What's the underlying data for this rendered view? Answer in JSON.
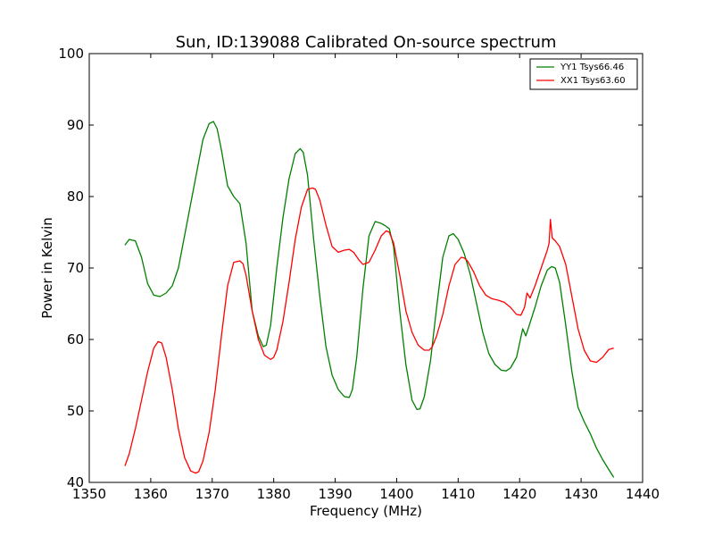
{
  "chart_data": {
    "type": "line",
    "title": "Sun, ID:139088 Calibrated On-source spectrum",
    "xlabel": "Frequency (MHz)",
    "ylabel": "Power in Kelvin",
    "xlim": [
      1350,
      1440
    ],
    "ylim": [
      40,
      100
    ],
    "xticks": [
      1350,
      1360,
      1370,
      1380,
      1390,
      1400,
      1410,
      1420,
      1430,
      1440
    ],
    "yticks": [
      40,
      50,
      60,
      70,
      80,
      90,
      100
    ],
    "grid": false,
    "legend_position": "top-right",
    "series": [
      {
        "name": "YY1 Tsys66.46",
        "color": "#008000",
        "x": [
          1355.8,
          1356.5,
          1357.5,
          1358.5,
          1359.5,
          1360.5,
          1361.5,
          1362.5,
          1363.5,
          1364.5,
          1365.5,
          1366.5,
          1367.5,
          1368.5,
          1369.5,
          1370.2,
          1370.8,
          1371.5,
          1372.5,
          1373.5,
          1374.5,
          1375.5,
          1376.5,
          1377.5,
          1378.3,
          1378.8,
          1379.5,
          1380.5,
          1381.5,
          1382.5,
          1383.5,
          1384.3,
          1384.8,
          1385.5,
          1386.5,
          1387.5,
          1388.5,
          1389.5,
          1390.5,
          1391.5,
          1392.3,
          1392.8,
          1393.5,
          1394.5,
          1395.5,
          1396.5,
          1397.3,
          1398.0,
          1398.8,
          1399.5,
          1400.5,
          1401.5,
          1402.5,
          1403.3,
          1403.8,
          1404.5,
          1405.5,
          1406.5,
          1407.5,
          1408.5,
          1409.2,
          1410.0,
          1411.0,
          1412.0,
          1413.0,
          1414.0,
          1415.0,
          1416.0,
          1417.0,
          1417.8,
          1418.5,
          1419.5,
          1420.5,
          1421.0,
          1421.5,
          1422.5,
          1423.5,
          1424.5,
          1425.2,
          1425.8,
          1426.5,
          1427.5,
          1428.5,
          1429.5,
          1430.5,
          1431.5,
          1432.5,
          1433.5,
          1434.5,
          1435.3
        ],
        "values": [
          73.2,
          74.0,
          73.8,
          71.5,
          67.8,
          66.2,
          66.0,
          66.5,
          67.5,
          70.0,
          74.5,
          79.0,
          83.5,
          88.0,
          90.2,
          90.5,
          89.5,
          86.5,
          81.5,
          80.0,
          79.0,
          73.5,
          64.0,
          60.5,
          59.0,
          59.2,
          62.0,
          70.0,
          77.0,
          82.5,
          86.0,
          86.7,
          86.2,
          83.0,
          74.0,
          66.0,
          59.0,
          55.0,
          53.0,
          52.0,
          51.9,
          53.0,
          57.5,
          67.0,
          74.5,
          76.5,
          76.3,
          76.0,
          75.5,
          73.0,
          64.0,
          56.5,
          51.5,
          50.2,
          50.3,
          52.0,
          57.0,
          64.5,
          71.5,
          74.5,
          74.8,
          74.0,
          72.0,
          69.0,
          65.0,
          61.0,
          58.0,
          56.5,
          55.7,
          55.6,
          56.0,
          57.5,
          61.5,
          60.5,
          61.8,
          64.5,
          67.5,
          69.7,
          70.2,
          70.0,
          68.0,
          62.0,
          55.5,
          50.5,
          48.5,
          46.8,
          44.8,
          43.2,
          41.8,
          40.7
        ]
      },
      {
        "name": "XX1 Tsys63.60",
        "color": "#ff0000",
        "x": [
          1355.8,
          1356.5,
          1357.5,
          1358.5,
          1359.5,
          1360.5,
          1361.2,
          1361.8,
          1362.5,
          1363.5,
          1364.5,
          1365.5,
          1366.5,
          1367.3,
          1367.8,
          1368.5,
          1369.5,
          1370.5,
          1371.5,
          1372.5,
          1373.5,
          1374.5,
          1375.0,
          1375.5,
          1376.5,
          1377.5,
          1378.5,
          1379.5,
          1380.0,
          1380.5,
          1381.5,
          1382.5,
          1383.5,
          1384.5,
          1385.5,
          1386.3,
          1386.8,
          1387.5,
          1388.5,
          1389.5,
          1390.5,
          1391.5,
          1392.3,
          1393.0,
          1393.8,
          1394.5,
          1395.5,
          1396.5,
          1397.5,
          1398.3,
          1398.8,
          1399.5,
          1400.5,
          1401.5,
          1402.5,
          1403.5,
          1404.5,
          1405.3,
          1405.8,
          1406.5,
          1407.5,
          1408.5,
          1409.5,
          1410.5,
          1411.0,
          1411.5,
          1412.5,
          1413.5,
          1414.5,
          1415.5,
          1416.5,
          1417.5,
          1418.5,
          1419.5,
          1420.2,
          1420.8,
          1421.2,
          1421.7,
          1422.5,
          1423.5,
          1424.5,
          1424.8,
          1425.0,
          1425.3,
          1425.8,
          1426.5,
          1427.5,
          1428.5,
          1429.5,
          1430.5,
          1431.5,
          1432.5,
          1433.5,
          1434.5,
          1435.3
        ],
        "values": [
          42.3,
          44.0,
          47.5,
          51.5,
          55.5,
          58.8,
          59.7,
          59.5,
          57.5,
          53.0,
          47.5,
          43.5,
          41.6,
          41.3,
          41.5,
          43.0,
          47.0,
          53.0,
          60.5,
          67.5,
          70.8,
          71.0,
          70.6,
          69.0,
          64.0,
          60.0,
          57.8,
          57.2,
          57.5,
          58.5,
          62.5,
          68.0,
          74.0,
          78.5,
          81.0,
          81.2,
          81.0,
          79.5,
          76.0,
          73.0,
          72.2,
          72.5,
          72.6,
          72.2,
          71.2,
          70.5,
          70.8,
          72.5,
          74.5,
          75.2,
          75.0,
          73.5,
          69.0,
          64.0,
          61.0,
          59.2,
          58.5,
          58.5,
          59.0,
          60.5,
          63.5,
          67.5,
          70.5,
          71.5,
          71.4,
          71.0,
          69.5,
          67.5,
          66.2,
          65.7,
          65.5,
          65.2,
          64.5,
          63.5,
          63.4,
          64.5,
          66.5,
          65.8,
          67.5,
          70.0,
          72.5,
          73.5,
          76.8,
          74.2,
          73.8,
          73.0,
          70.5,
          66.0,
          61.5,
          58.5,
          57.0,
          56.8,
          57.5,
          58.6,
          58.8
        ]
      }
    ]
  }
}
